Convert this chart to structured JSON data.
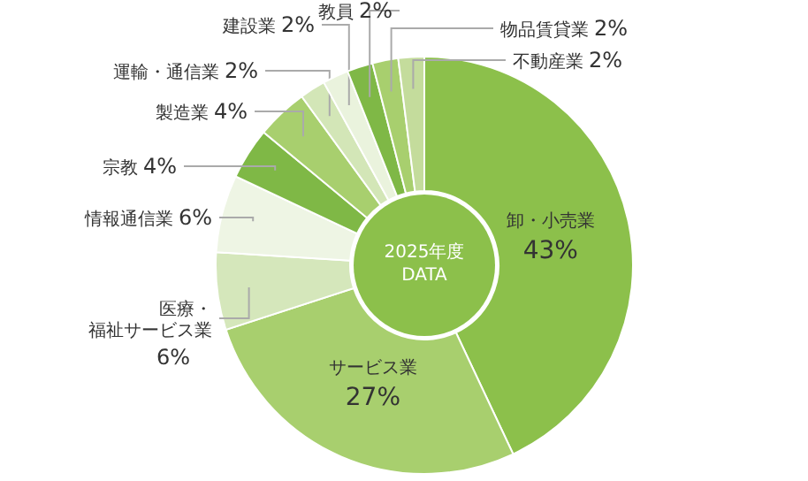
{
  "chart_data": {
    "type": "donut",
    "title": "2025年度\nDATA",
    "categories": [
      "卸・小売業",
      "サービス業",
      "医療・福祉サービス業",
      "情報通信業",
      "宗教",
      "製造業",
      "運輸・通信業",
      "建設業",
      "教員",
      "物品賃貸業",
      "不動産業"
    ],
    "values": [
      43,
      27,
      6,
      6,
      4,
      4,
      2,
      2,
      2,
      2,
      2
    ],
    "value_labels": [
      "43%",
      "27%",
      "6%",
      "6%",
      "4%",
      "4%",
      "2%",
      "2%",
      "2%",
      "2%",
      "2%"
    ],
    "colors": [
      "#8cc04b",
      "#a8cf6e",
      "#d5e7bb",
      "#eef5e4",
      "#7fb846",
      "#a8cf6e",
      "#d3e6b7",
      "#eaf3dd",
      "#7fb846",
      "#a8cf6e",
      "#c4dc9c"
    ]
  }
}
